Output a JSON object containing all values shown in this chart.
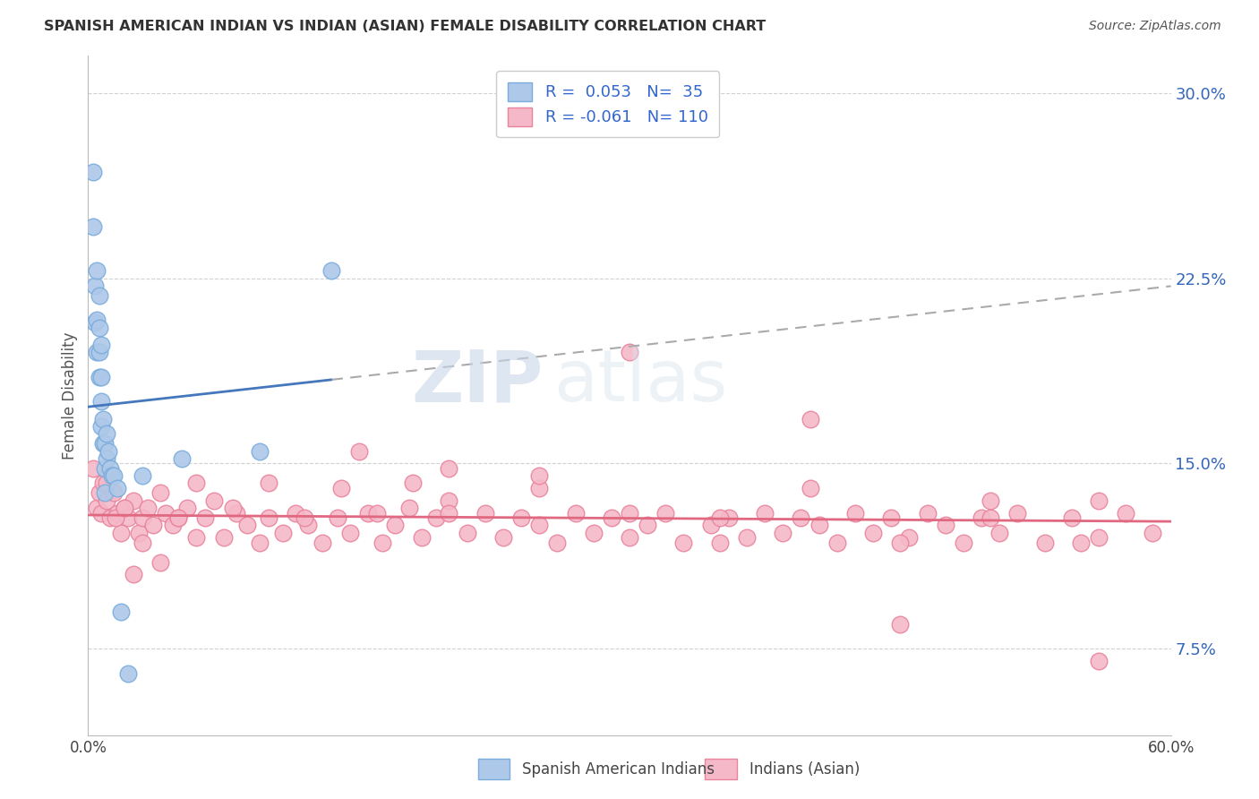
{
  "title": "SPANISH AMERICAN INDIAN VS INDIAN (ASIAN) FEMALE DISABILITY CORRELATION CHART",
  "source": "Source: ZipAtlas.com",
  "ylabel": "Female Disability",
  "xmin": 0.0,
  "xmax": 0.6,
  "ymin": 0.04,
  "ymax": 0.315,
  "yticks": [
    0.075,
    0.15,
    0.225,
    0.3
  ],
  "ytick_labels": [
    "7.5%",
    "15.0%",
    "22.5%",
    "30.0%"
  ],
  "xticks": [
    0.0,
    0.1,
    0.2,
    0.3,
    0.4,
    0.5,
    0.6
  ],
  "xtick_labels": [
    "0.0%",
    "",
    "",
    "",
    "",
    "",
    "60.0%"
  ],
  "blue_color": "#adc8e8",
  "blue_edge": "#7aacdc",
  "pink_color": "#f5b8c8",
  "pink_edge": "#e8849c",
  "blue_line_color": "#4477bb",
  "pink_line_color": "#e06880",
  "watermark_zip": "ZIP",
  "watermark_atlas": "atlas",
  "legend_label1": "Spanish American Indians",
  "legend_label2": "Indians (Asian)",
  "blue_x": [
    0.003,
    0.003,
    0.004,
    0.004,
    0.005,
    0.005,
    0.005,
    0.006,
    0.006,
    0.006,
    0.006,
    0.007,
    0.007,
    0.007,
    0.007,
    0.008,
    0.008,
    0.009,
    0.009,
    0.009,
    0.01,
    0.01,
    0.011,
    0.012,
    0.013,
    0.014,
    0.016,
    0.018,
    0.022,
    0.03,
    0.052,
    0.095,
    0.135
  ],
  "blue_y": [
    0.268,
    0.246,
    0.222,
    0.207,
    0.228,
    0.208,
    0.195,
    0.218,
    0.205,
    0.195,
    0.185,
    0.198,
    0.185,
    0.175,
    0.165,
    0.168,
    0.158,
    0.158,
    0.148,
    0.138,
    0.162,
    0.152,
    0.155,
    0.148,
    0.145,
    0.145,
    0.14,
    0.09,
    0.065,
    0.145,
    0.152,
    0.155,
    0.228
  ],
  "pink_x": [
    0.003,
    0.005,
    0.006,
    0.007,
    0.008,
    0.01,
    0.012,
    0.014,
    0.016,
    0.018,
    0.02,
    0.022,
    0.025,
    0.028,
    0.03,
    0.033,
    0.036,
    0.04,
    0.043,
    0.047,
    0.05,
    0.055,
    0.06,
    0.065,
    0.07,
    0.075,
    0.082,
    0.088,
    0.095,
    0.1,
    0.108,
    0.115,
    0.122,
    0.13,
    0.138,
    0.145,
    0.155,
    0.163,
    0.17,
    0.178,
    0.185,
    0.193,
    0.2,
    0.21,
    0.22,
    0.23,
    0.24,
    0.25,
    0.26,
    0.27,
    0.28,
    0.29,
    0.3,
    0.31,
    0.32,
    0.33,
    0.345,
    0.355,
    0.365,
    0.375,
    0.385,
    0.395,
    0.405,
    0.415,
    0.425,
    0.435,
    0.445,
    0.455,
    0.465,
    0.475,
    0.485,
    0.495,
    0.505,
    0.515,
    0.53,
    0.545,
    0.56,
    0.575,
    0.59,
    0.01,
    0.015,
    0.02,
    0.025,
    0.03,
    0.04,
    0.05,
    0.06,
    0.08,
    0.1,
    0.12,
    0.14,
    0.16,
    0.18,
    0.2,
    0.25,
    0.3,
    0.35,
    0.4,
    0.45,
    0.5,
    0.55,
    0.3,
    0.4,
    0.5,
    0.15,
    0.2,
    0.25,
    0.35,
    0.45,
    0.56,
    0.56
  ],
  "pink_y": [
    0.148,
    0.132,
    0.138,
    0.13,
    0.142,
    0.135,
    0.128,
    0.138,
    0.13,
    0.122,
    0.132,
    0.128,
    0.135,
    0.122,
    0.128,
    0.132,
    0.125,
    0.138,
    0.13,
    0.125,
    0.128,
    0.132,
    0.12,
    0.128,
    0.135,
    0.12,
    0.13,
    0.125,
    0.118,
    0.128,
    0.122,
    0.13,
    0.125,
    0.118,
    0.128,
    0.122,
    0.13,
    0.118,
    0.125,
    0.132,
    0.12,
    0.128,
    0.135,
    0.122,
    0.13,
    0.12,
    0.128,
    0.125,
    0.118,
    0.13,
    0.122,
    0.128,
    0.12,
    0.125,
    0.13,
    0.118,
    0.125,
    0.128,
    0.12,
    0.13,
    0.122,
    0.128,
    0.125,
    0.118,
    0.13,
    0.122,
    0.128,
    0.12,
    0.13,
    0.125,
    0.118,
    0.128,
    0.122,
    0.13,
    0.118,
    0.128,
    0.12,
    0.13,
    0.122,
    0.142,
    0.128,
    0.132,
    0.105,
    0.118,
    0.11,
    0.128,
    0.142,
    0.132,
    0.142,
    0.128,
    0.14,
    0.13,
    0.142,
    0.13,
    0.14,
    0.13,
    0.128,
    0.14,
    0.118,
    0.128,
    0.118,
    0.195,
    0.168,
    0.135,
    0.155,
    0.148,
    0.145,
    0.118,
    0.085,
    0.07,
    0.135
  ]
}
